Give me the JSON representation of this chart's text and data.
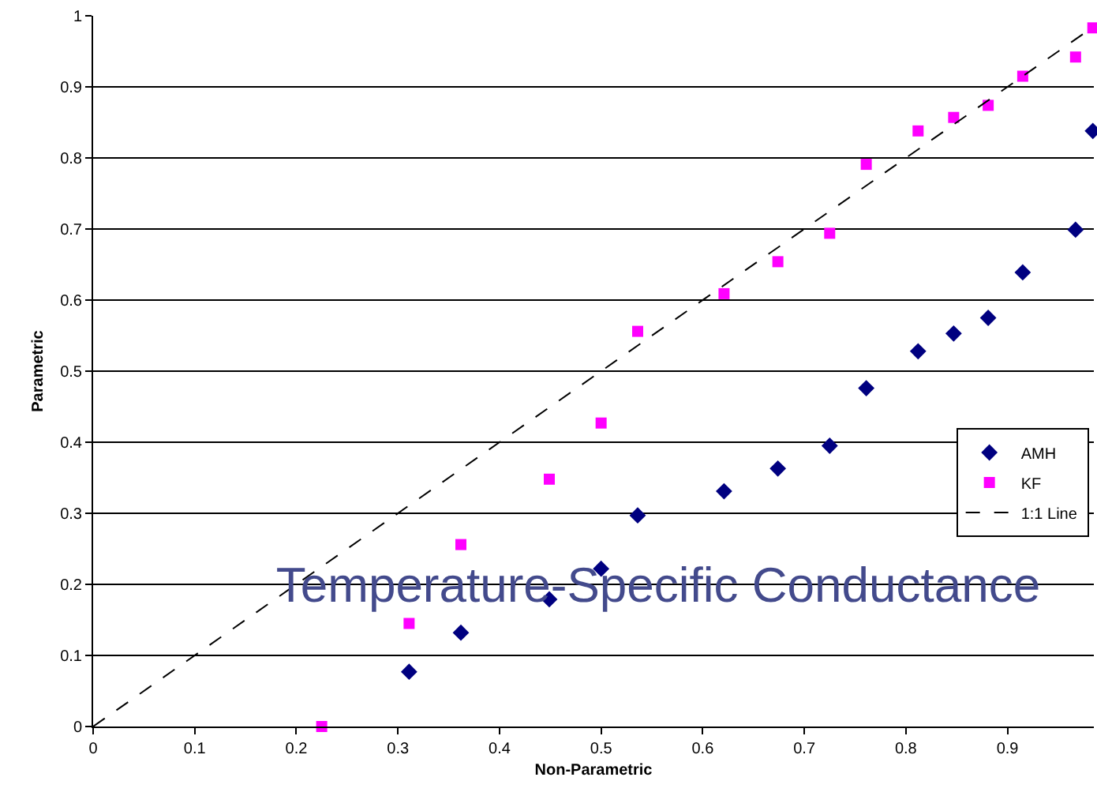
{
  "chart_data": {
    "type": "scatter",
    "title": "Temperature-Specific Conductance",
    "xlabel": "Non-Parametric",
    "ylabel": "Parametric",
    "x": [
      0.225,
      0.311,
      0.362,
      0.449,
      0.5,
      0.536,
      0.621,
      0.674,
      0.725,
      0.761,
      0.812,
      0.847,
      0.881,
      0.915,
      0.967,
      0.984
    ],
    "series": [
      {
        "name": "AMH",
        "color": "#000080",
        "marker": "diamond",
        "values": [
          null,
          0.077,
          0.132,
          0.179,
          0.222,
          0.297,
          0.331,
          0.363,
          0.395,
          0.476,
          0.528,
          0.553,
          0.575,
          0.639,
          0.699,
          0.838
        ]
      },
      {
        "name": "KF",
        "color": "#ff00ff",
        "marker": "square",
        "values": [
          0,
          0.145,
          0.256,
          0.348,
          0.427,
          0.556,
          0.609,
          0.654,
          0.694,
          0.791,
          0.838,
          0.857,
          0.874,
          0.915,
          0.942,
          0.983
        ]
      },
      {
        "name": "1:1 Line",
        "type": "line",
        "color": "#000000",
        "marker": "none",
        "line_style": "dashed",
        "x": [
          0,
          0.985
        ],
        "values": [
          0,
          0.985
        ]
      }
    ],
    "xlim": [
      0,
      0.985
    ],
    "ylim": [
      0,
      1
    ],
    "xticks": [
      0,
      0.1,
      0.2,
      0.3,
      0.4,
      0.5,
      0.6,
      0.7,
      0.8,
      0.9
    ],
    "yticks": [
      0,
      0.1,
      0.2,
      0.3,
      0.4,
      0.5,
      0.6,
      0.7,
      0.8,
      0.9,
      1
    ],
    "grid": "y",
    "legend": "right"
  }
}
